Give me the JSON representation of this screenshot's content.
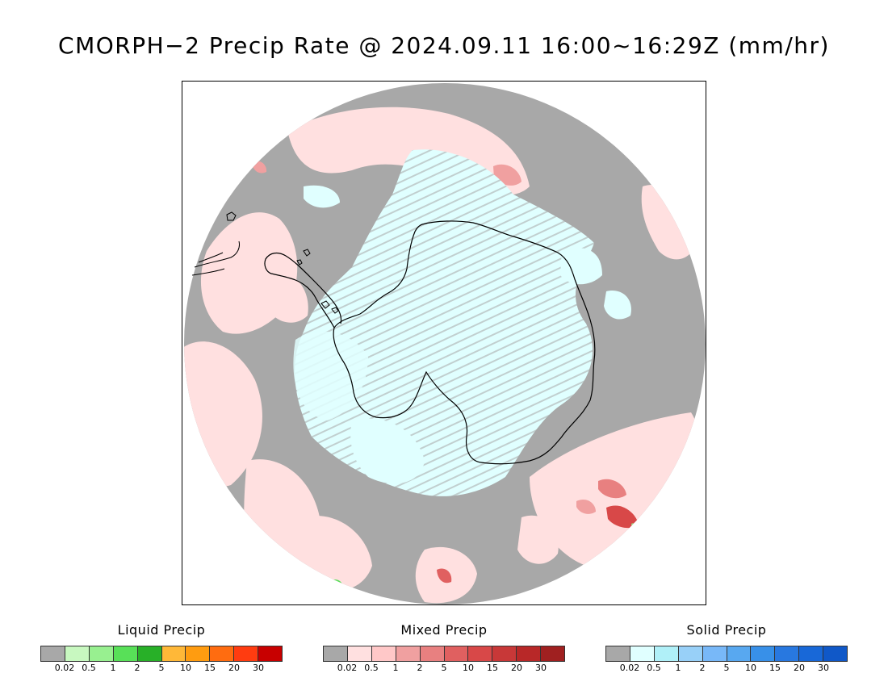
{
  "title": "CMORPH−2 Precip Rate @ 2024.09.11 16:00~16:29Z (mm/hr)",
  "map": {
    "projection": "south polar stereographic",
    "background_color": "#a8a8a8",
    "coastline_color": "#000000"
  },
  "legends": [
    {
      "key": "liquid",
      "title": "Liquid Precip",
      "colors": [
        "#a8a8a8",
        "#c8f8c0",
        "#98f090",
        "#58e058",
        "#28b028",
        "#ffb838",
        "#ff9c10",
        "#ff6c10",
        "#ff3c10",
        "#c80000"
      ],
      "ticks": [
        "0.02",
        "0.5",
        "1",
        "2",
        "5",
        "10",
        "15",
        "20",
        "30"
      ]
    },
    {
      "key": "mixed",
      "title": "Mixed Precip",
      "colors": [
        "#a8a8a8",
        "#ffe0e0",
        "#ffc8c8",
        "#f0a0a0",
        "#e88080",
        "#e06060",
        "#d84848",
        "#c83838",
        "#b82828",
        "#a02020"
      ],
      "ticks": [
        "0.02",
        "0.5",
        "1",
        "2",
        "5",
        "10",
        "15",
        "20",
        "30"
      ]
    },
    {
      "key": "solid",
      "title": "Solid Precip",
      "colors": [
        "#a8a8a8",
        "#e0ffff",
        "#b0f0f8",
        "#98d0f8",
        "#78b8f8",
        "#58a8f0",
        "#3890e8",
        "#2878e0",
        "#1868d8",
        "#1058c8"
      ],
      "ticks": [
        "0.02",
        "0.5",
        "1",
        "2",
        "5",
        "10",
        "15",
        "20",
        "30"
      ]
    }
  ]
}
